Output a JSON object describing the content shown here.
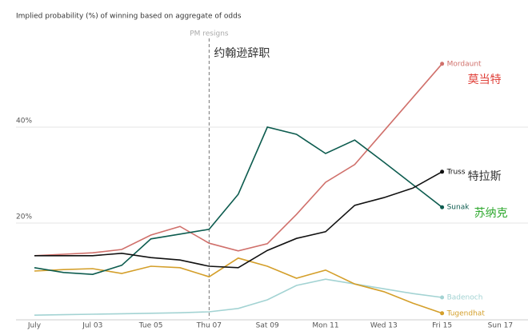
{
  "chart_data": {
    "type": "line",
    "title": "Implied probability (%) of winning based on aggregate of odds",
    "categories": [
      "July",
      null,
      "Jul 03",
      null,
      "Tue 05",
      null,
      "Thu 07",
      null,
      "Sat 09",
      null,
      "Mon 11",
      null,
      "Wed 13",
      null,
      "Fri 15",
      null,
      "Sun 17"
    ],
    "ylim": [
      0,
      60
    ],
    "yticks": [
      {
        "value": 20,
        "label": "20%"
      },
      {
        "value": 40,
        "label": "40%"
      }
    ],
    "grid": true,
    "event": {
      "at": "Thu 07",
      "label": "PM resigns",
      "annotation": "约翰逊辞职"
    },
    "series": [
      {
        "name": "Badenoch",
        "color": "#a3d3d3",
        "values": [
          0.8,
          0.9,
          1.0,
          1.1,
          1.2,
          1.3,
          1.5,
          2.2,
          4,
          7,
          8.3,
          7.3,
          6.3,
          5.3,
          4.5,
          null,
          null
        ]
      },
      {
        "name": "Tugendhat",
        "color": "#d49f2a",
        "values": [
          10,
          10.3,
          10.5,
          9.5,
          11,
          10.7,
          8.8,
          12.7,
          11,
          8.5,
          10.2,
          7.3,
          5.7,
          3.3,
          1.2,
          null,
          null
        ]
      },
      {
        "name": "Mordaunt",
        "color": "#d0706b",
        "annotation": "莫当特",
        "annotation_color": "#e0413a",
        "values": [
          13.2,
          13.5,
          13.8,
          14.5,
          17.5,
          19.3,
          15.8,
          14.2,
          15.7,
          21.8,
          28.5,
          32.2,
          39.2,
          46.2,
          53.2,
          null,
          null
        ]
      },
      {
        "name": "Sunak",
        "color": "#0d5c4f",
        "annotation": "苏纳克",
        "annotation_color": "#2ea82e",
        "values": [
          10.7,
          9.7,
          9.3,
          11.2,
          16.7,
          17.7,
          18.7,
          26,
          40,
          38.5,
          34.5,
          37.3,
          32.7,
          28,
          23.3,
          null,
          null
        ]
      },
      {
        "name": "Truss",
        "color": "#111111",
        "annotation": "特拉斯",
        "annotation_color": "#333333",
        "values": [
          13.2,
          13.2,
          13.2,
          13.7,
          12.8,
          12.3,
          11,
          10.7,
          14.3,
          16.8,
          18.2,
          23.7,
          25.3,
          27.3,
          30.7,
          null,
          null
        ]
      }
    ]
  }
}
